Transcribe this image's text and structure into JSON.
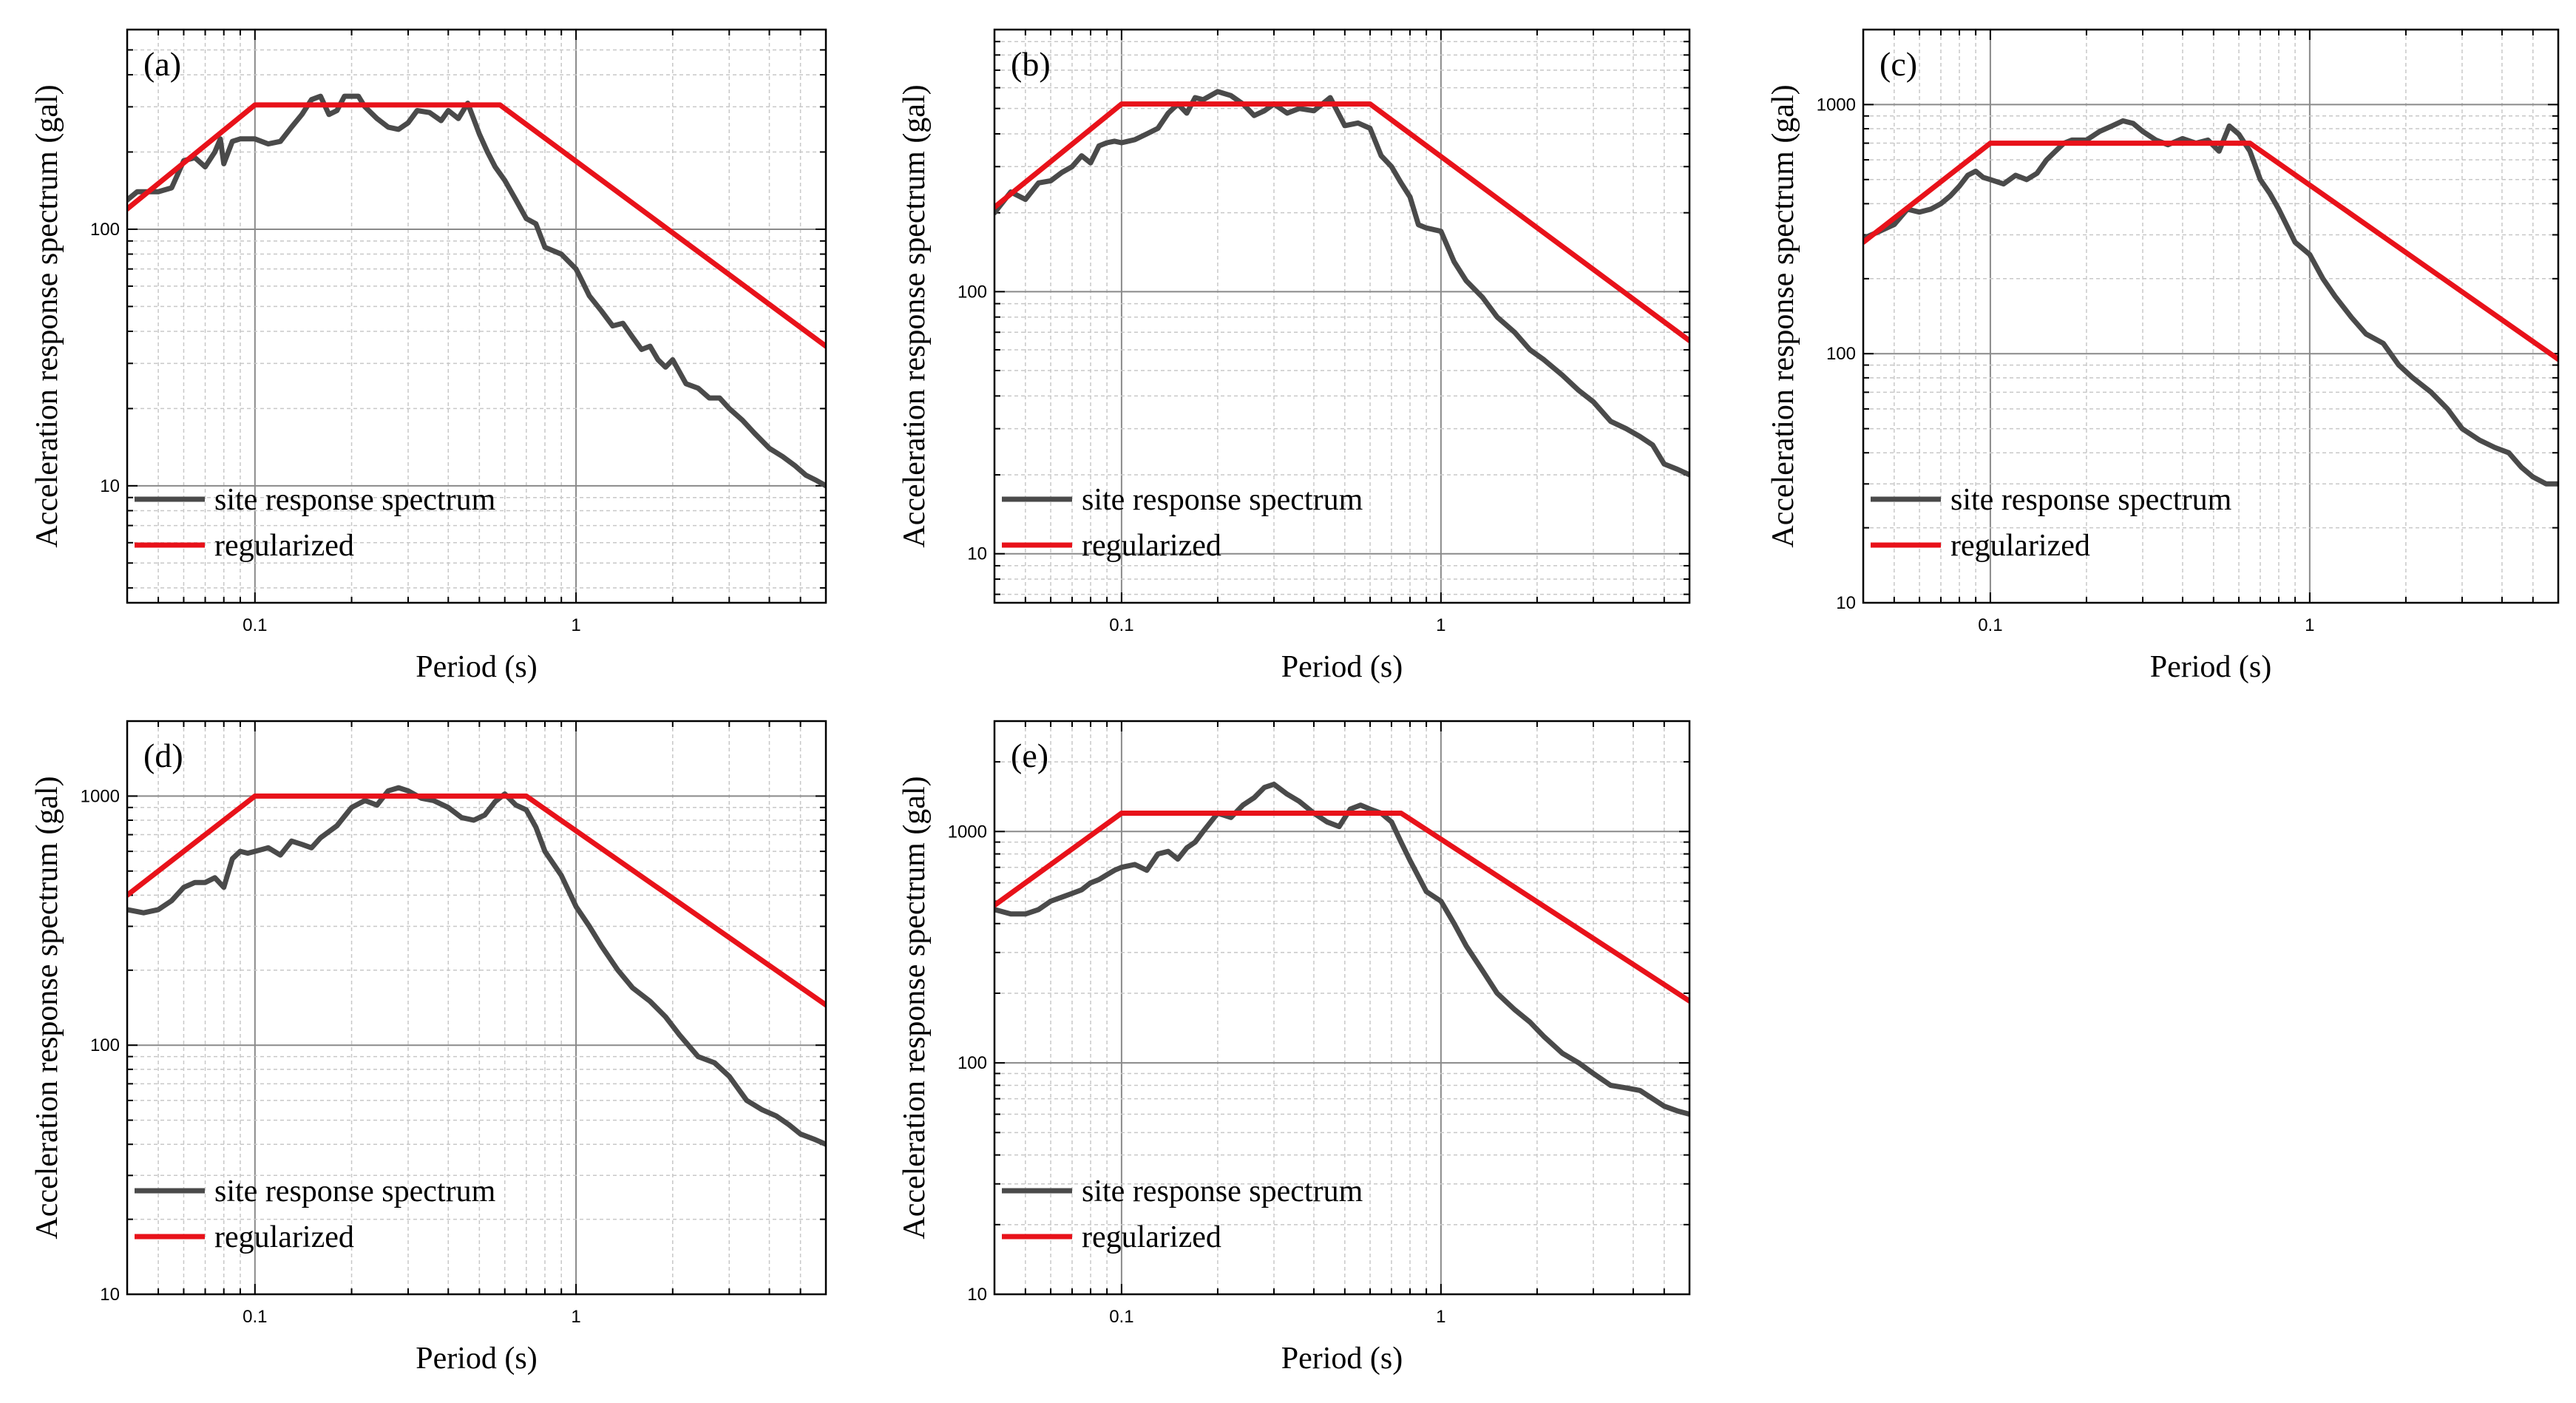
{
  "chart_data": [
    {
      "type": "line",
      "panel_label": "(a)",
      "xlabel": "Period (s)",
      "ylabel": "Acceleration response spectrum (gal)",
      "xscale": "log",
      "yscale": "log",
      "xlim": [
        0.04,
        6
      ],
      "ylim": [
        3.5,
        600
      ],
      "x_tick_labels": [
        "0.1",
        "1"
      ],
      "y_tick_labels": [
        "10",
        "100"
      ],
      "grid": true,
      "legend_position": "lower-left",
      "series": [
        {
          "name": "site response spectrum",
          "color": "#4a4a4a",
          "x": [
            0.04,
            0.043,
            0.05,
            0.055,
            0.06,
            0.065,
            0.07,
            0.075,
            0.078,
            0.08,
            0.085,
            0.09,
            0.1,
            0.11,
            0.12,
            0.13,
            0.14,
            0.15,
            0.16,
            0.17,
            0.18,
            0.19,
            0.2,
            0.21,
            0.22,
            0.24,
            0.26,
            0.28,
            0.3,
            0.32,
            0.35,
            0.38,
            0.4,
            0.43,
            0.46,
            0.5,
            0.53,
            0.56,
            0.6,
            0.65,
            0.7,
            0.75,
            0.8,
            0.9,
            1.0,
            1.05,
            1.1,
            1.2,
            1.3,
            1.4,
            1.5,
            1.6,
            1.7,
            1.8,
            1.9,
            2.0,
            2.2,
            2.4,
            2.6,
            2.8,
            3.0,
            3.3,
            3.6,
            4.0,
            4.4,
            4.8,
            5.2,
            5.6,
            6.0
          ],
          "y": [
            130,
            140,
            140,
            145,
            185,
            190,
            175,
            200,
            225,
            180,
            220,
            225,
            225,
            215,
            220,
            250,
            280,
            320,
            330,
            280,
            290,
            330,
            330,
            330,
            300,
            270,
            250,
            245,
            260,
            290,
            285,
            265,
            290,
            270,
            310,
            235,
            200,
            175,
            155,
            130,
            110,
            105,
            85,
            80,
            70,
            62,
            55,
            48,
            42,
            43,
            38,
            34,
            35,
            31,
            29,
            31,
            25,
            24,
            22,
            22,
            20,
            18,
            16,
            14,
            13,
            12,
            11,
            10.5,
            10
          ]
        },
        {
          "name": "regularized",
          "color": "#e8121a",
          "x": [
            0.04,
            0.1,
            0.58,
            6.0
          ],
          "y": [
            120,
            305,
            305,
            35
          ]
        }
      ]
    },
    {
      "type": "line",
      "panel_label": "(b)",
      "xlabel": "Period (s)",
      "ylabel": "Acceleration response spectrum (gal)",
      "xscale": "log",
      "yscale": "log",
      "xlim": [
        0.04,
        6
      ],
      "ylim": [
        6.5,
        1000
      ],
      "x_tick_labels": [
        "0.1",
        "1"
      ],
      "y_tick_labels": [
        "10",
        "100"
      ],
      "grid": true,
      "legend_position": "lower-left",
      "series": [
        {
          "name": "site response spectrum",
          "color": "#4a4a4a",
          "x": [
            0.04,
            0.045,
            0.05,
            0.055,
            0.06,
            0.065,
            0.07,
            0.075,
            0.08,
            0.085,
            0.09,
            0.095,
            0.1,
            0.11,
            0.12,
            0.13,
            0.14,
            0.15,
            0.16,
            0.17,
            0.18,
            0.2,
            0.22,
            0.24,
            0.26,
            0.28,
            0.3,
            0.33,
            0.36,
            0.4,
            0.45,
            0.5,
            0.55,
            0.6,
            0.65,
            0.7,
            0.75,
            0.8,
            0.85,
            0.9,
            1.0,
            1.1,
            1.2,
            1.35,
            1.5,
            1.7,
            1.9,
            2.1,
            2.4,
            2.7,
            3.0,
            3.4,
            3.8,
            4.2,
            4.6,
            5.0,
            5.5,
            6.0
          ],
          "y": [
            200,
            240,
            225,
            260,
            265,
            285,
            300,
            330,
            310,
            360,
            370,
            375,
            370,
            380,
            400,
            420,
            480,
            520,
            480,
            550,
            540,
            580,
            560,
            520,
            470,
            490,
            520,
            480,
            500,
            490,
            550,
            430,
            440,
            420,
            330,
            300,
            260,
            230,
            180,
            175,
            170,
            130,
            110,
            95,
            80,
            70,
            60,
            55,
            48,
            42,
            38,
            32,
            30,
            28,
            26,
            22,
            21,
            20
          ]
        },
        {
          "name": "regularized",
          "color": "#e8121a",
          "x": [
            0.04,
            0.1,
            0.6,
            6.0
          ],
          "y": [
            210,
            520,
            520,
            65
          ]
        }
      ]
    },
    {
      "type": "line",
      "panel_label": "(c)",
      "xlabel": "Period (s)",
      "ylabel": "Acceleration response spectrum (gal)",
      "xscale": "log",
      "yscale": "log",
      "xlim": [
        0.04,
        6
      ],
      "ylim": [
        10,
        2000
      ],
      "x_tick_labels": [
        "0.1",
        "1"
      ],
      "y_tick_labels": [
        "10",
        "100",
        "1000"
      ],
      "grid": true,
      "legend_position": "lower-left",
      "series": [
        {
          "name": "site response spectrum",
          "color": "#4a4a4a",
          "x": [
            0.04,
            0.045,
            0.05,
            0.055,
            0.06,
            0.065,
            0.07,
            0.075,
            0.08,
            0.085,
            0.09,
            0.095,
            0.1,
            0.11,
            0.12,
            0.13,
            0.14,
            0.15,
            0.16,
            0.17,
            0.18,
            0.2,
            0.22,
            0.24,
            0.26,
            0.28,
            0.3,
            0.33,
            0.36,
            0.4,
            0.44,
            0.48,
            0.52,
            0.56,
            0.6,
            0.65,
            0.7,
            0.75,
            0.8,
            0.9,
            1.0,
            1.1,
            1.2,
            1.35,
            1.5,
            1.7,
            1.9,
            2.1,
            2.4,
            2.7,
            3.0,
            3.4,
            3.8,
            4.2,
            4.6,
            5.0,
            5.5,
            6.0
          ],
          "y": [
            290,
            310,
            330,
            380,
            370,
            380,
            400,
            430,
            470,
            520,
            540,
            510,
            500,
            480,
            520,
            500,
            530,
            600,
            650,
            700,
            720,
            720,
            780,
            820,
            860,
            840,
            780,
            720,
            690,
            730,
            700,
            720,
            650,
            820,
            760,
            650,
            500,
            440,
            380,
            280,
            250,
            200,
            170,
            140,
            120,
            110,
            90,
            80,
            70,
            60,
            50,
            45,
            42,
            40,
            35,
            32,
            30,
            30
          ]
        },
        {
          "name": "regularized",
          "color": "#e8121a",
          "x": [
            0.04,
            0.1,
            0.65,
            6.0
          ],
          "y": [
            280,
            700,
            700,
            95
          ]
        }
      ]
    },
    {
      "type": "line",
      "panel_label": "(d)",
      "xlabel": "Period (s)",
      "ylabel": "Acceleration response spectrum (gal)",
      "xscale": "log",
      "yscale": "log",
      "xlim": [
        0.04,
        6
      ],
      "ylim": [
        10,
        2000
      ],
      "x_tick_labels": [
        "0.1",
        "1"
      ],
      "y_tick_labels": [
        "10",
        "100",
        "1000"
      ],
      "grid": true,
      "legend_position": "lower-left",
      "series": [
        {
          "name": "site response spectrum",
          "color": "#4a4a4a",
          "x": [
            0.04,
            0.045,
            0.05,
            0.055,
            0.06,
            0.065,
            0.07,
            0.075,
            0.08,
            0.085,
            0.09,
            0.095,
            0.1,
            0.11,
            0.12,
            0.13,
            0.14,
            0.15,
            0.16,
            0.17,
            0.18,
            0.2,
            0.22,
            0.24,
            0.26,
            0.28,
            0.3,
            0.33,
            0.36,
            0.4,
            0.44,
            0.48,
            0.52,
            0.56,
            0.6,
            0.65,
            0.7,
            0.75,
            0.8,
            0.9,
            1.0,
            1.1,
            1.2,
            1.35,
            1.5,
            1.7,
            1.9,
            2.1,
            2.4,
            2.7,
            3.0,
            3.4,
            3.8,
            4.2,
            4.6,
            5.0,
            5.5,
            6.0
          ],
          "y": [
            350,
            340,
            350,
            380,
            430,
            450,
            450,
            470,
            430,
            560,
            600,
            590,
            600,
            620,
            580,
            660,
            640,
            620,
            680,
            720,
            760,
            900,
            960,
            920,
            1050,
            1080,
            1050,
            980,
            960,
            900,
            820,
            800,
            840,
            950,
            1020,
            920,
            880,
            750,
            600,
            480,
            360,
            300,
            250,
            200,
            170,
            150,
            130,
            110,
            90,
            85,
            75,
            60,
            55,
            52,
            48,
            44,
            42,
            40
          ]
        },
        {
          "name": "regularized",
          "color": "#e8121a",
          "x": [
            0.04,
            0.1,
            0.7,
            6.0
          ],
          "y": [
            400,
            1000,
            1000,
            145
          ]
        }
      ]
    },
    {
      "type": "line",
      "panel_label": "(e)",
      "xlabel": "Period (s)",
      "ylabel": "Acceleration response spectrum (gal)",
      "xscale": "log",
      "yscale": "log",
      "xlim": [
        0.04,
        6
      ],
      "ylim": [
        10,
        3000
      ],
      "x_tick_labels": [
        "0.1",
        "1"
      ],
      "y_tick_labels": [
        "10",
        "100",
        "1000"
      ],
      "grid": true,
      "legend_position": "lower-left",
      "series": [
        {
          "name": "site response spectrum",
          "color": "#4a4a4a",
          "x": [
            0.04,
            0.045,
            0.05,
            0.055,
            0.06,
            0.065,
            0.07,
            0.075,
            0.08,
            0.085,
            0.09,
            0.095,
            0.1,
            0.11,
            0.12,
            0.13,
            0.14,
            0.15,
            0.16,
            0.17,
            0.18,
            0.2,
            0.22,
            0.24,
            0.26,
            0.28,
            0.3,
            0.33,
            0.36,
            0.4,
            0.44,
            0.48,
            0.52,
            0.56,
            0.6,
            0.65,
            0.7,
            0.75,
            0.8,
            0.9,
            1.0,
            1.1,
            1.2,
            1.35,
            1.5,
            1.7,
            1.9,
            2.1,
            2.4,
            2.7,
            3.0,
            3.4,
            3.8,
            4.2,
            4.6,
            5.0,
            5.5,
            6.0
          ],
          "y": [
            460,
            440,
            440,
            460,
            500,
            520,
            540,
            560,
            600,
            620,
            650,
            680,
            700,
            720,
            680,
            800,
            820,
            760,
            850,
            900,
            1000,
            1200,
            1150,
            1300,
            1400,
            1550,
            1600,
            1450,
            1350,
            1200,
            1100,
            1050,
            1250,
            1300,
            1250,
            1200,
            1100,
            900,
            750,
            550,
            500,
            400,
            320,
            250,
            200,
            170,
            150,
            130,
            110,
            100,
            90,
            80,
            78,
            76,
            70,
            65,
            62,
            60
          ]
        },
        {
          "name": "regularized",
          "color": "#e8121a",
          "x": [
            0.04,
            0.1,
            0.75,
            6.0
          ],
          "y": [
            480,
            1200,
            1200,
            185
          ]
        }
      ]
    }
  ]
}
